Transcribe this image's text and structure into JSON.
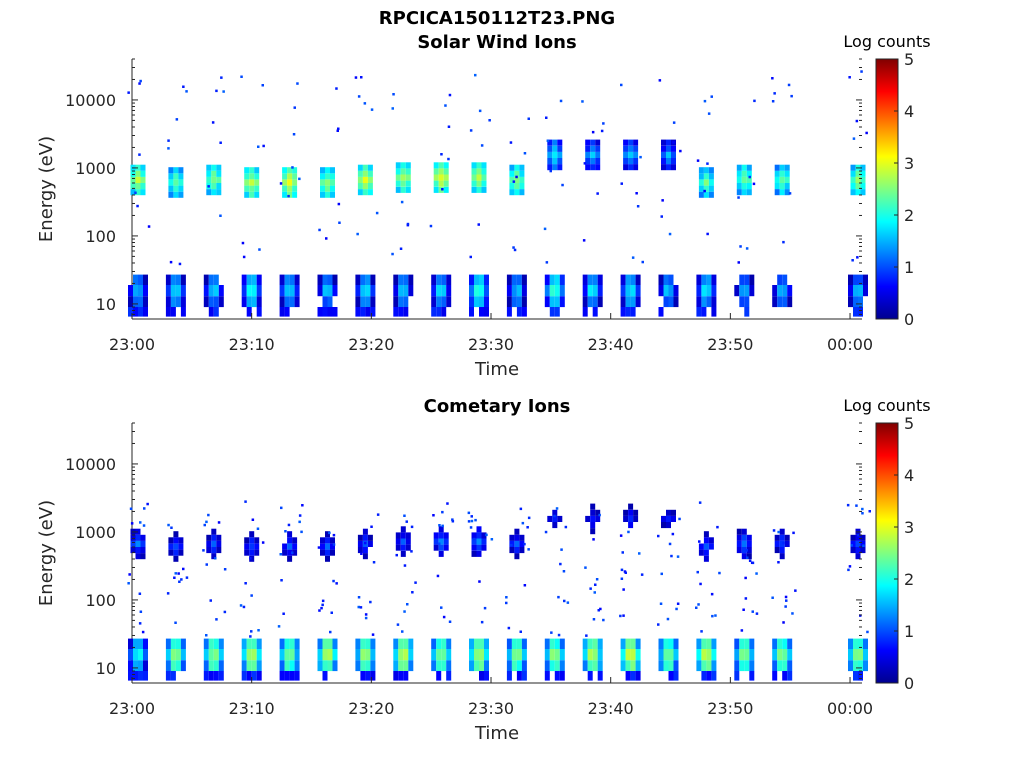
{
  "figure_title": "RPCICA150112T23.PNG",
  "colorbar_label": "Log counts",
  "colors": {
    "axis": "#262626",
    "colormap": [
      "#00008f",
      "#0000ff",
      "#0080ff",
      "#00ffff",
      "#80ff80",
      "#ffff00",
      "#ff8000",
      "#ff0000",
      "#800000"
    ]
  },
  "chart_data": [
    {
      "type": "heatmap",
      "title": "Solar Wind Ions",
      "xlabel": "Time",
      "ylabel": "Energy (eV)",
      "xlim": [
        "23:00",
        "00:01"
      ],
      "x_ticks": [
        "23:00",
        "23:10",
        "23:20",
        "23:30",
        "23:40",
        "23:50",
        "00:00"
      ],
      "ylim": [
        6,
        40000
      ],
      "yscale": "log",
      "y_ticks": [
        {
          "value": 10,
          "label": "10"
        },
        {
          "value": 100,
          "label": "100"
        },
        {
          "value": 1000,
          "label": "1000"
        },
        {
          "value": 10000,
          "label": "10000"
        }
      ],
      "colorbar": {
        "label": "Log counts",
        "min": 0,
        "max": 5,
        "ticks": [
          0,
          1,
          2,
          3,
          4,
          5
        ]
      },
      "bursts": [
        {
          "t": "23:00:30",
          "peak_ev": 600,
          "peak": 2.8,
          "low_max": 1.6
        },
        {
          "t": "23:03:40",
          "peak_ev": 550,
          "peak": 2.4,
          "low_max": 1.8
        },
        {
          "t": "23:06:50",
          "peak_ev": 600,
          "peak": 2.6,
          "low_max": 1.7
        },
        {
          "t": "23:10:00",
          "peak_ev": 550,
          "peak": 2.8,
          "low_max": 2.0
        },
        {
          "t": "23:13:10",
          "peak_ev": 550,
          "peak": 3.0,
          "low_max": 1.8
        },
        {
          "t": "23:16:20",
          "peak_ev": 550,
          "peak": 2.6,
          "low_max": 1.6
        },
        {
          "t": "23:19:30",
          "peak_ev": 600,
          "peak": 2.9,
          "low_max": 1.8
        },
        {
          "t": "23:22:40",
          "peak_ev": 650,
          "peak": 2.8,
          "low_max": 1.6
        },
        {
          "t": "23:25:50",
          "peak_ev": 650,
          "peak": 3.0,
          "low_max": 1.7
        },
        {
          "t": "23:29:00",
          "peak_ev": 650,
          "peak": 2.8,
          "low_max": 2.2
        },
        {
          "t": "23:32:10",
          "peak_ev": 600,
          "peak": 2.6,
          "low_max": 1.6
        },
        {
          "t": "23:35:20",
          "peak_ev": 1400,
          "peak": 1.8,
          "low_max": 2.2
        },
        {
          "t": "23:38:30",
          "peak_ev": 1400,
          "peak": 1.6,
          "low_max": 1.8
        },
        {
          "t": "23:41:40",
          "peak_ev": 1400,
          "peak": 1.6,
          "low_max": 1.8
        },
        {
          "t": "23:44:50",
          "peak_ev": 1400,
          "peak": 1.5,
          "low_max": 1.6
        },
        {
          "t": "23:48:00",
          "peak_ev": 550,
          "peak": 2.4,
          "low_max": 1.8
        },
        {
          "t": "23:51:10",
          "peak_ev": 600,
          "peak": 2.5,
          "low_max": 1.5
        },
        {
          "t": "23:54:20",
          "peak_ev": 600,
          "peak": 2.4,
          "low_max": 1.6
        },
        {
          "t": "00:00:40",
          "peak_ev": 600,
          "peak": 2.6,
          "low_max": 1.6
        }
      ]
    },
    {
      "type": "heatmap",
      "title": "Cometary Ions",
      "xlabel": "Time",
      "ylabel": "Energy (eV)",
      "xlim": [
        "23:00",
        "00:01"
      ],
      "x_ticks": [
        "23:00",
        "23:10",
        "23:20",
        "23:30",
        "23:40",
        "23:50",
        "00:00"
      ],
      "ylim": [
        6,
        40000
      ],
      "yscale": "log",
      "y_ticks": [
        {
          "value": 10,
          "label": "10"
        },
        {
          "value": 100,
          "label": "100"
        },
        {
          "value": 1000,
          "label": "1000"
        },
        {
          "value": 10000,
          "label": "10000"
        }
      ],
      "colorbar": {
        "label": "Log counts",
        "min": 0,
        "max": 5,
        "ticks": [
          0,
          1,
          2,
          3,
          4,
          5
        ]
      },
      "bursts": [
        {
          "t": "23:00:30",
          "peak_ev": 600,
          "peak": 1.2,
          "low_max": 2.0
        },
        {
          "t": "23:03:40",
          "peak_ev": 550,
          "peak": 1.0,
          "low_max": 2.6
        },
        {
          "t": "23:06:50",
          "peak_ev": 600,
          "peak": 1.0,
          "low_max": 2.6
        },
        {
          "t": "23:10:00",
          "peak_ev": 550,
          "peak": 1.0,
          "low_max": 2.8
        },
        {
          "t": "23:13:10",
          "peak_ev": 550,
          "peak": 1.0,
          "low_max": 2.6
        },
        {
          "t": "23:16:20",
          "peak_ev": 550,
          "peak": 1.0,
          "low_max": 2.8
        },
        {
          "t": "23:19:30",
          "peak_ev": 600,
          "peak": 1.0,
          "low_max": 2.6
        },
        {
          "t": "23:22:40",
          "peak_ev": 650,
          "peak": 1.0,
          "low_max": 2.8
        },
        {
          "t": "23:25:50",
          "peak_ev": 650,
          "peak": 1.2,
          "low_max": 2.6
        },
        {
          "t": "23:29:00",
          "peak_ev": 650,
          "peak": 1.2,
          "low_max": 2.8
        },
        {
          "t": "23:32:10",
          "peak_ev": 600,
          "peak": 1.0,
          "low_max": 2.6
        },
        {
          "t": "23:35:20",
          "peak_ev": 1400,
          "peak": 0.8,
          "low_max": 2.6
        },
        {
          "t": "23:38:30",
          "peak_ev": 1400,
          "peak": 0.8,
          "low_max": 2.8
        },
        {
          "t": "23:41:40",
          "peak_ev": 1400,
          "peak": 0.8,
          "low_max": 2.9
        },
        {
          "t": "23:44:50",
          "peak_ev": 1400,
          "peak": 0.8,
          "low_max": 2.6
        },
        {
          "t": "23:48:00",
          "peak_ev": 550,
          "peak": 1.0,
          "low_max": 2.9
        },
        {
          "t": "23:51:10",
          "peak_ev": 600,
          "peak": 1.2,
          "low_max": 2.6
        },
        {
          "t": "23:54:20",
          "peak_ev": 600,
          "peak": 1.0,
          "low_max": 2.6
        },
        {
          "t": "00:00:40",
          "peak_ev": 600,
          "peak": 1.0,
          "low_max": 2.6
        }
      ]
    }
  ]
}
